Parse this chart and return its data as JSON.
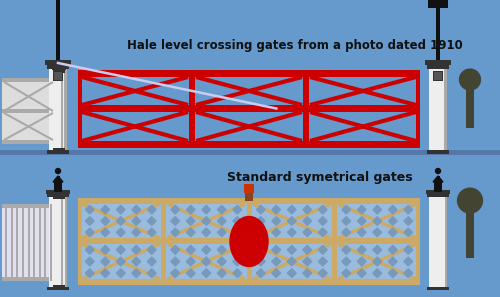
{
  "bg_color": "#6699cc",
  "title1": "Hale level crossing gates from a photo dated 1910",
  "title2": "Standard symetrical gates",
  "lamp_color": "#111111",
  "lamp_glass": "#e8e8cc",
  "post_color": "#eeeeee",
  "post_shadow": "#aaaaaa",
  "post_cap": "#333333",
  "gate1_color": "#cc0000",
  "gate2_color": "#ccaa66",
  "gate2_fill": "#99bbdd",
  "small_gate_color": "#dddddd",
  "small_gate_bar": "#aaaaaa",
  "disc_color": "#cc0000",
  "figure_color": "#444433",
  "wire_color": "#ccccee",
  "text_color": "#111111",
  "sep_color": "#5577aa"
}
